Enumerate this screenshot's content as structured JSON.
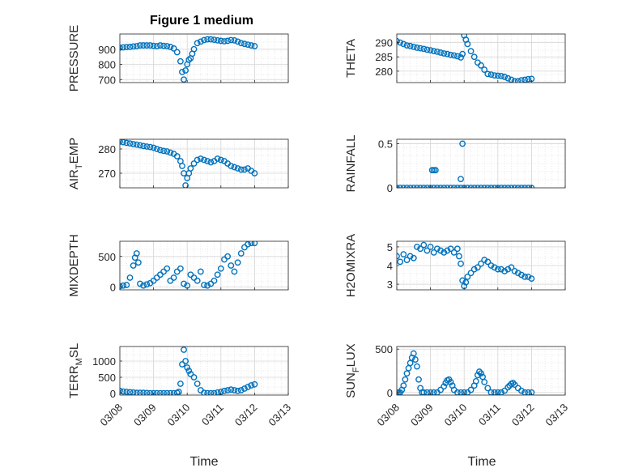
{
  "figure": {
    "title": "Figure 1 medium",
    "xlabel": "Time"
  },
  "colors": {
    "marker": "#0072BD",
    "grid": "#e1e1e1",
    "axis": "#262626"
  },
  "chart_data": [
    {
      "type": "scatter",
      "name": "pressure",
      "ylabel": "PRESSURE",
      "ylim": [
        680,
        1000
      ],
      "yticks": [
        700,
        800,
        900
      ],
      "xlim": [
        0,
        5
      ],
      "xticks": [
        0,
        1,
        2,
        3,
        4,
        5
      ],
      "xtick_labels": [
        "03/08",
        "03/09",
        "03/10",
        "03/11",
        "03/12",
        "03/13"
      ],
      "x": [
        0,
        0.1,
        0.2,
        0.3,
        0.4,
        0.5,
        0.6,
        0.7,
        0.8,
        0.9,
        1.0,
        1.1,
        1.2,
        1.3,
        1.4,
        1.5,
        1.6,
        1.7,
        1.8,
        1.85,
        1.9,
        1.95,
        2.0,
        2.05,
        2.1,
        2.15,
        2.2,
        2.3,
        2.4,
        2.5,
        2.6,
        2.7,
        2.8,
        2.9,
        3.0,
        3.1,
        3.2,
        3.3,
        3.4,
        3.5,
        3.6,
        3.7,
        3.8,
        3.9,
        4.0
      ],
      "y": [
        910,
        912,
        914,
        915,
        918,
        920,
        925,
        925,
        925,
        925,
        922,
        920,
        925,
        922,
        920,
        915,
        905,
        880,
        820,
        750,
        700,
        760,
        800,
        830,
        840,
        870,
        900,
        940,
        950,
        960,
        965,
        965,
        962,
        958,
        955,
        952,
        955,
        960,
        958,
        950,
        940,
        935,
        930,
        925,
        920
      ]
    },
    {
      "type": "scatter",
      "name": "theta",
      "ylabel": "THETA",
      "ylim": [
        276,
        293
      ],
      "yticks": [
        280,
        285,
        290
      ],
      "xlim": [
        0,
        5
      ],
      "xticks": [
        0,
        1,
        2,
        3,
        4,
        5
      ],
      "xtick_labels": [
        "03/08",
        "03/09",
        "03/10",
        "03/11",
        "03/12",
        "03/13"
      ],
      "x": [
        0,
        0.1,
        0.2,
        0.3,
        0.4,
        0.5,
        0.6,
        0.7,
        0.8,
        0.9,
        1.0,
        1.1,
        1.2,
        1.3,
        1.4,
        1.5,
        1.6,
        1.7,
        1.8,
        1.9,
        1.95,
        2.0,
        2.05,
        2.1,
        2.2,
        2.3,
        2.4,
        2.5,
        2.6,
        2.7,
        2.8,
        2.9,
        3.0,
        3.1,
        3.2,
        3.3,
        3.4,
        3.5,
        3.6,
        3.7,
        3.8,
        3.9,
        4.0
      ],
      "y": [
        290.5,
        290,
        289.5,
        289,
        288.8,
        288.5,
        288.2,
        288,
        287.8,
        287.5,
        287.3,
        287,
        286.8,
        286.5,
        286.2,
        286,
        285.7,
        285.5,
        285.2,
        284.8,
        286,
        292.5,
        291,
        289.5,
        287,
        285,
        283,
        282,
        280.5,
        279,
        278.8,
        278.5,
        278.4,
        278.3,
        278,
        277.5,
        277,
        276.5,
        276.5,
        276.8,
        277,
        277.2,
        277.3
      ]
    },
    {
      "type": "scatter",
      "name": "air_temp",
      "ylabel": "AIR_TEMP",
      "ylim": [
        264,
        284
      ],
      "yticks": [
        270,
        280
      ],
      "xlim": [
        0,
        5
      ],
      "xticks": [
        0,
        1,
        2,
        3,
        4,
        5
      ],
      "xtick_labels": [
        "03/08",
        "03/09",
        "03/10",
        "03/11",
        "03/12",
        "03/13"
      ],
      "x": [
        0,
        0.1,
        0.2,
        0.3,
        0.4,
        0.5,
        0.6,
        0.7,
        0.8,
        0.9,
        1.0,
        1.1,
        1.2,
        1.3,
        1.4,
        1.5,
        1.6,
        1.7,
        1.8,
        1.85,
        1.9,
        1.95,
        2.0,
        2.05,
        2.1,
        2.2,
        2.3,
        2.4,
        2.5,
        2.6,
        2.7,
        2.8,
        2.9,
        3.0,
        3.1,
        3.2,
        3.3,
        3.4,
        3.5,
        3.6,
        3.7,
        3.8,
        3.9,
        4.0
      ],
      "y": [
        283,
        282.8,
        282.5,
        282.3,
        282,
        281.8,
        281.5,
        281.2,
        281,
        280.8,
        280.5,
        280,
        279.5,
        279.2,
        279,
        278.5,
        278,
        277,
        275,
        273,
        270,
        265,
        268,
        270,
        272,
        274,
        275.5,
        276,
        275.5,
        275,
        274.5,
        275,
        276,
        275.5,
        275,
        274,
        273,
        272.5,
        272,
        271.5,
        271.5,
        272,
        271,
        270
      ]
    },
    {
      "type": "scatter",
      "name": "rainfall",
      "ylabel": "RAINFALL",
      "ylim": [
        0,
        0.55
      ],
      "yticks": [
        0,
        0.5
      ],
      "xlim": [
        0,
        5
      ],
      "xticks": [
        0,
        1,
        2,
        3,
        4,
        5
      ],
      "xtick_labels": [
        "03/08",
        "03/09",
        "03/10",
        "03/11",
        "03/12",
        "03/13"
      ],
      "x": [
        0,
        0.1,
        0.2,
        0.3,
        0.4,
        0.5,
        0.6,
        0.7,
        0.8,
        0.9,
        1.0,
        1.1,
        1.2,
        1.3,
        1.4,
        1.5,
        1.6,
        1.7,
        1.8,
        1.9,
        2.0,
        2.1,
        2.2,
        2.3,
        2.4,
        2.5,
        2.6,
        2.7,
        2.8,
        2.9,
        3.0,
        3.1,
        3.2,
        3.3,
        3.4,
        3.5,
        3.6,
        3.7,
        3.8,
        3.9,
        4.0,
        1.05,
        1.1,
        1.15,
        1.9,
        1.95
      ],
      "y": [
        0,
        0,
        0,
        0,
        0,
        0,
        0,
        0,
        0,
        0,
        0,
        0,
        0,
        0,
        0,
        0,
        0,
        0,
        0,
        0,
        0,
        0,
        0,
        0,
        0,
        0,
        0,
        0,
        0,
        0,
        0,
        0,
        0,
        0,
        0,
        0,
        0,
        0,
        0,
        0,
        0,
        0.2,
        0.2,
        0.2,
        0.1,
        0.5
      ]
    },
    {
      "type": "scatter",
      "name": "mixdepth",
      "ylabel": "MIXDEPTH",
      "ylim": [
        -50,
        750
      ],
      "yticks": [
        0,
        500
      ],
      "xlim": [
        0,
        5
      ],
      "xticks": [
        0,
        1,
        2,
        3,
        4,
        5
      ],
      "xtick_labels": [
        "03/08",
        "03/09",
        "03/10",
        "03/11",
        "03/12",
        "03/13"
      ],
      "x": [
        0,
        0.1,
        0.2,
        0.3,
        0.4,
        0.45,
        0.5,
        0.55,
        0.6,
        0.7,
        0.8,
        0.9,
        1.0,
        1.1,
        1.2,
        1.3,
        1.4,
        1.5,
        1.6,
        1.7,
        1.8,
        1.9,
        2.0,
        2.1,
        2.2,
        2.3,
        2.4,
        2.5,
        2.6,
        2.7,
        2.8,
        2.9,
        3.0,
        3.1,
        3.2,
        3.3,
        3.4,
        3.5,
        3.6,
        3.7,
        3.8,
        3.9,
        4.0
      ],
      "y": [
        10,
        20,
        30,
        150,
        350,
        480,
        550,
        400,
        50,
        20,
        40,
        60,
        100,
        150,
        200,
        250,
        300,
        100,
        150,
        250,
        300,
        50,
        20,
        200,
        150,
        100,
        250,
        30,
        20,
        50,
        100,
        200,
        300,
        450,
        500,
        350,
        250,
        400,
        550,
        650,
        700,
        720,
        720
      ]
    },
    {
      "type": "scatter",
      "name": "h2omixra",
      "ylabel": "H2OMIXRA",
      "ylim": [
        2.7,
        5.3
      ],
      "yticks": [
        3,
        4,
        5
      ],
      "xlim": [
        0,
        5
      ],
      "xticks": [
        0,
        1,
        2,
        3,
        4,
        5
      ],
      "xtick_labels": [
        "03/08",
        "03/09",
        "03/10",
        "03/11",
        "03/12",
        "03/13"
      ],
      "x": [
        0,
        0.1,
        0.2,
        0.3,
        0.4,
        0.5,
        0.6,
        0.7,
        0.8,
        0.9,
        1.0,
        1.1,
        1.2,
        1.3,
        1.4,
        1.5,
        1.6,
        1.7,
        1.8,
        1.85,
        1.9,
        1.95,
        2.0,
        2.05,
        2.1,
        2.2,
        2.3,
        2.4,
        2.5,
        2.6,
        2.7,
        2.8,
        2.9,
        3.0,
        3.1,
        3.2,
        3.3,
        3.4,
        3.5,
        3.6,
        3.7,
        3.8,
        3.9,
        4.0
      ],
      "y": [
        4.5,
        4.2,
        4.6,
        4.3,
        4.5,
        4.4,
        5.0,
        4.9,
        5.1,
        4.8,
        5.0,
        4.7,
        4.9,
        4.8,
        4.7,
        4.8,
        4.9,
        4.7,
        4.9,
        4.5,
        4.1,
        3.2,
        2.9,
        3.1,
        3.4,
        3.6,
        3.8,
        3.9,
        4.1,
        4.3,
        4.2,
        4.0,
        3.9,
        3.8,
        3.8,
        3.7,
        3.8,
        3.9,
        3.7,
        3.6,
        3.5,
        3.4,
        3.4,
        3.3
      ]
    },
    {
      "type": "scatter",
      "name": "terr_msl",
      "ylabel": "TERR_MSL",
      "ylim": [
        -50,
        1450
      ],
      "yticks": [
        0,
        500,
        1000
      ],
      "xlim": [
        0,
        5
      ],
      "xticks": [
        0,
        1,
        2,
        3,
        4,
        5
      ],
      "xtick_labels": [
        "03/08",
        "03/09",
        "03/10",
        "03/11",
        "03/12",
        "03/13"
      ],
      "x": [
        0,
        0.1,
        0.2,
        0.3,
        0.4,
        0.5,
        0.6,
        0.7,
        0.8,
        0.9,
        1.0,
        1.1,
        1.2,
        1.3,
        1.4,
        1.5,
        1.6,
        1.7,
        1.75,
        1.8,
        1.85,
        1.9,
        1.95,
        2.0,
        2.05,
        2.1,
        2.2,
        2.3,
        2.4,
        2.5,
        2.6,
        2.7,
        2.8,
        2.9,
        3.0,
        3.1,
        3.2,
        3.3,
        3.4,
        3.5,
        3.6,
        3.7,
        3.8,
        3.9,
        4.0
      ],
      "y": [
        80,
        60,
        50,
        40,
        30,
        20,
        20,
        20,
        15,
        10,
        10,
        10,
        10,
        10,
        10,
        10,
        10,
        20,
        50,
        300,
        900,
        1350,
        1000,
        800,
        700,
        600,
        500,
        300,
        100,
        20,
        10,
        10,
        10,
        30,
        50,
        80,
        100,
        120,
        100,
        80,
        100,
        150,
        200,
        250,
        280
      ]
    },
    {
      "type": "scatter",
      "name": "sun_flux",
      "ylabel": "SUN_FLUX",
      "ylim": [
        -30,
        530
      ],
      "yticks": [
        0,
        500
      ],
      "xlim": [
        0,
        5
      ],
      "xticks": [
        0,
        1,
        2,
        3,
        4,
        5
      ],
      "xtick_labels": [
        "03/08",
        "03/09",
        "03/10",
        "03/11",
        "03/12",
        "03/13"
      ],
      "x": [
        0,
        0.05,
        0.1,
        0.15,
        0.2,
        0.25,
        0.3,
        0.35,
        0.4,
        0.45,
        0.5,
        0.55,
        0.6,
        0.65,
        0.7,
        0.75,
        0.8,
        0.9,
        1.0,
        1.1,
        1.2,
        1.3,
        1.4,
        1.45,
        1.5,
        1.55,
        1.6,
        1.65,
        1.7,
        1.8,
        1.9,
        2.0,
        2.1,
        2.2,
        2.3,
        2.35,
        2.4,
        2.45,
        2.5,
        2.55,
        2.6,
        2.7,
        2.8,
        2.9,
        3.0,
        3.1,
        3.2,
        3.3,
        3.35,
        3.4,
        3.45,
        3.5,
        3.6,
        3.7,
        3.8,
        3.9,
        4.0
      ],
      "y": [
        0,
        0,
        0,
        30,
        80,
        150,
        220,
        280,
        340,
        400,
        450,
        380,
        300,
        150,
        50,
        0,
        0,
        0,
        0,
        0,
        0,
        30,
        70,
        110,
        140,
        150,
        120,
        80,
        30,
        0,
        0,
        0,
        0,
        30,
        80,
        130,
        200,
        240,
        220,
        180,
        120,
        50,
        0,
        0,
        0,
        0,
        20,
        60,
        80,
        100,
        110,
        90,
        50,
        20,
        0,
        0,
        0
      ]
    }
  ]
}
